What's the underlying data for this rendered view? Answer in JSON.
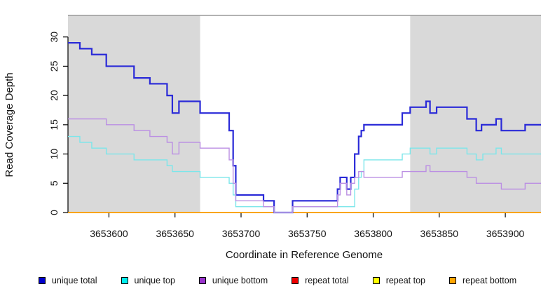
{
  "figure": {
    "ylabel": "Read Coverage Depth",
    "xlabel": "Coordinate in Reference Genome"
  },
  "chart_data": {
    "type": "line",
    "subtype": "step",
    "title": "",
    "xlabel": "Coordinate in Reference Genome",
    "ylabel": "Read Coverage Depth",
    "xlim": [
      3653569,
      3653927
    ],
    "ylim": [
      0,
      30
    ],
    "x_ticks": [
      3653600,
      3653650,
      3653700,
      3653750,
      3653800,
      3653850,
      3653900
    ],
    "y_ticks": [
      0,
      5,
      10,
      15,
      20,
      25,
      30
    ],
    "grid": false,
    "legend_position": "bottom",
    "panel_background": "#ffffff",
    "shaded_regions": [
      {
        "x_start": 3653569,
        "x_end": 3653669,
        "color": "#d9d9d9"
      },
      {
        "x_start": 3653828,
        "x_end": 3653927,
        "color": "#d9d9d9"
      }
    ],
    "top_border_color": "#999999",
    "series": [
      {
        "name": "unique total",
        "color": "#2a2ad8",
        "legend_fill": "#0000cc",
        "width": 2.2,
        "z": 3,
        "steps": [
          [
            3653569,
            29
          ],
          [
            3653578,
            28
          ],
          [
            3653587,
            27
          ],
          [
            3653598,
            25
          ],
          [
            3653619,
            23
          ],
          [
            3653631,
            22
          ],
          [
            3653644,
            20
          ],
          [
            3653648,
            17
          ],
          [
            3653653,
            19
          ],
          [
            3653669,
            17
          ],
          [
            3653691,
            14
          ],
          [
            3653694,
            8
          ],
          [
            3653696,
            3
          ],
          [
            3653717,
            2
          ],
          [
            3653725,
            0
          ],
          [
            3653739,
            2
          ],
          [
            3653773,
            4
          ],
          [
            3653775,
            6
          ],
          [
            3653780,
            4
          ],
          [
            3653783,
            6
          ],
          [
            3653786,
            10
          ],
          [
            3653789,
            13
          ],
          [
            3653791,
            14
          ],
          [
            3653793,
            15
          ],
          [
            3653822,
            17
          ],
          [
            3653828,
            18
          ],
          [
            3653840,
            19
          ],
          [
            3653843,
            17
          ],
          [
            3653848,
            18
          ],
          [
            3653871,
            16
          ],
          [
            3653878,
            14
          ],
          [
            3653882,
            15
          ],
          [
            3653893,
            16
          ],
          [
            3653897,
            14
          ],
          [
            3653915,
            15
          ]
        ]
      },
      {
        "name": "unique top",
        "color": "#7ce6ea",
        "legend_fill": "#00eeee",
        "width": 1.4,
        "z": 4,
        "steps": [
          [
            3653569,
            13
          ],
          [
            3653578,
            12
          ],
          [
            3653587,
            11
          ],
          [
            3653598,
            10
          ],
          [
            3653619,
            9
          ],
          [
            3653644,
            8
          ],
          [
            3653648,
            7
          ],
          [
            3653669,
            6
          ],
          [
            3653691,
            5
          ],
          [
            3653694,
            3
          ],
          [
            3653696,
            1
          ],
          [
            3653725,
            0
          ],
          [
            3653739,
            1
          ],
          [
            3653786,
            4
          ],
          [
            3653789,
            6
          ],
          [
            3653791,
            7
          ],
          [
            3653793,
            9
          ],
          [
            3653822,
            10
          ],
          [
            3653828,
            11
          ],
          [
            3653843,
            10
          ],
          [
            3653848,
            11
          ],
          [
            3653871,
            10
          ],
          [
            3653878,
            9
          ],
          [
            3653883,
            10
          ],
          [
            3653893,
            11
          ],
          [
            3653897,
            10
          ]
        ]
      },
      {
        "name": "unique bottom",
        "color": "#bb8fe3",
        "legend_fill": "#9933cc",
        "width": 1.4,
        "z": 5,
        "steps": [
          [
            3653569,
            16
          ],
          [
            3653598,
            15
          ],
          [
            3653619,
            14
          ],
          [
            3653631,
            13
          ],
          [
            3653644,
            12
          ],
          [
            3653648,
            10
          ],
          [
            3653653,
            12
          ],
          [
            3653669,
            11
          ],
          [
            3653691,
            9
          ],
          [
            3653694,
            5
          ],
          [
            3653696,
            2
          ],
          [
            3653717,
            1
          ],
          [
            3653725,
            0
          ],
          [
            3653739,
            1
          ],
          [
            3653773,
            3
          ],
          [
            3653775,
            5
          ],
          [
            3653780,
            3
          ],
          [
            3653783,
            5
          ],
          [
            3653786,
            6
          ],
          [
            3653789,
            7
          ],
          [
            3653793,
            6
          ],
          [
            3653822,
            7
          ],
          [
            3653840,
            8
          ],
          [
            3653843,
            7
          ],
          [
            3653871,
            6
          ],
          [
            3653878,
            5
          ],
          [
            3653897,
            4
          ],
          [
            3653915,
            5
          ]
        ]
      },
      {
        "name": "repeat total",
        "color": "#dd0000",
        "legend_fill": "#ee0000",
        "width": 1.2,
        "z": 0,
        "steps": [
          [
            3653569,
            0
          ]
        ]
      },
      {
        "name": "repeat top",
        "color": "#eeee00",
        "legend_fill": "#ffff00",
        "width": 1.2,
        "z": 1,
        "steps": [
          [
            3653569,
            0
          ]
        ]
      },
      {
        "name": "repeat bottom",
        "color": "#ffa500",
        "legend_fill": "#ffa500",
        "width": 1.7,
        "z": 2,
        "steps": [
          [
            3653569,
            0
          ]
        ]
      }
    ]
  },
  "legend": {
    "items": [
      {
        "label": "unique total",
        "fill": "#0000cc"
      },
      {
        "label": "unique top",
        "fill": "#00eeee"
      },
      {
        "label": "unique bottom",
        "fill": "#9933cc"
      },
      {
        "label": "repeat total",
        "fill": "#ee0000"
      },
      {
        "label": "repeat top",
        "fill": "#ffff00"
      },
      {
        "label": "repeat bottom",
        "fill": "#ffa500"
      }
    ]
  }
}
